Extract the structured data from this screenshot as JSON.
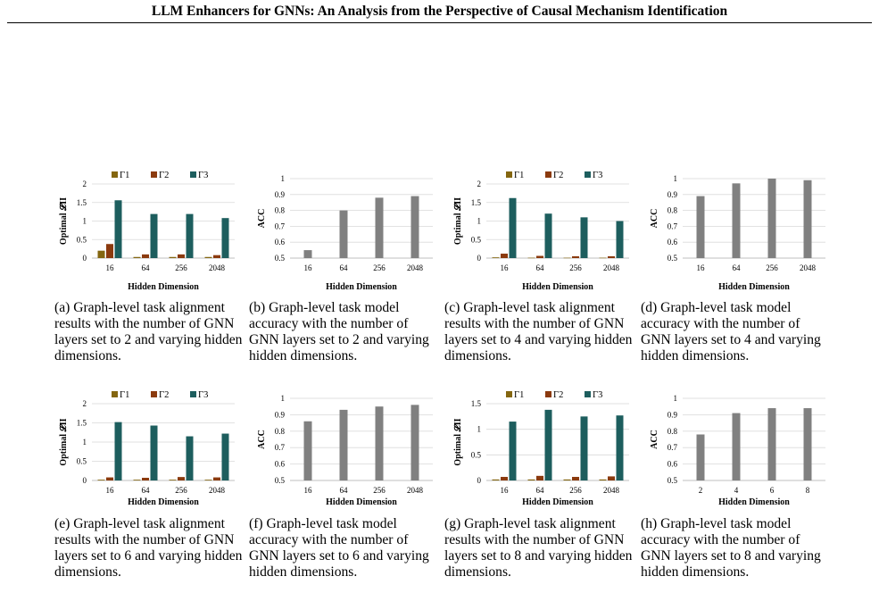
{
  "header": {
    "title": "LLM Enhancers for GNNs: An Analysis from the Perspective of Causal Mechanism Identification"
  },
  "colors": {
    "gamma1": "#846610",
    "gamma2": "#8B3A0E",
    "gamma3": "#1D5E5E",
    "acc": "#808080"
  },
  "captions": {
    "a": "(a) Graph-level task alignment results with the number of GNN layers set to 2 and varying hidden dimensions.",
    "b": "(b) Graph-level task model accuracy with the number of GNN layers set to 2 and varying hidden dimensions.",
    "c": "(c) Graph-level task alignment results with the number of GNN layers set to 4 and varying hidden dimensions.",
    "d": "(d) Graph-level task model accuracy with the number of GNN layers set to 4 and varying hidden dimensions.",
    "e": "(e) Graph-level task alignment results with the number of GNN layers set to 6 and varying hidden dimensions.",
    "f": "(f) Graph-level task model accuracy with the number of GNN layers set to 6 and varying hidden dimensions.",
    "g": "(g) Graph-level task alignment results with the number of GNN layers set to 8 and varying hidden dimensions.",
    "h": "(h) Graph-level task model accuracy with the number of GNN layers set to 8 and varying hidden dimensions."
  },
  "chart_data": [
    {
      "id": "a",
      "type": "bar",
      "categories": [
        "16",
        "64",
        "256",
        "2048"
      ],
      "ylabel": "Optimal 𝓛II",
      "xlabel": "Hidden Dimension",
      "ylim": [
        0,
        2
      ],
      "yticks": [
        0,
        0.5,
        1,
        1.5,
        2
      ],
      "ytick_labels": [
        "0",
        "0.5",
        "1",
        "1.5",
        "2"
      ],
      "legend": "top",
      "series": [
        {
          "name": "Γ1",
          "values": [
            0.2,
            0.03,
            0.03,
            0.03
          ]
        },
        {
          "name": "Γ2",
          "values": [
            0.38,
            0.1,
            0.1,
            0.08
          ]
        },
        {
          "name": "Γ3",
          "values": [
            1.56,
            1.19,
            1.19,
            1.08
          ]
        }
      ]
    },
    {
      "id": "b",
      "type": "bar",
      "categories": [
        "16",
        "64",
        "256",
        "2048"
      ],
      "ylabel": "ACC",
      "xlabel": "Hidden Dimension",
      "ylim": [
        0.5,
        1
      ],
      "yticks": [
        0.5,
        0.6,
        0.7,
        0.8,
        0.9,
        1
      ],
      "ytick_labels": [
        "0.5",
        "0.6",
        "0.7",
        "0.8",
        "0.9",
        "1"
      ],
      "series": [
        {
          "values": [
            0.55,
            0.8,
            0.88,
            0.89
          ]
        }
      ]
    },
    {
      "id": "c",
      "type": "bar",
      "categories": [
        "16",
        "64",
        "256",
        "2048"
      ],
      "ylabel": "Optimal 𝓛II",
      "xlabel": "Hidden Dimension",
      "ylim": [
        0,
        2
      ],
      "yticks": [
        0,
        0.5,
        1,
        1.5,
        2
      ],
      "ytick_labels": [
        "0",
        "0.5",
        "1",
        "1.5",
        "2"
      ],
      "legend": "top",
      "series": [
        {
          "name": "Γ1",
          "values": [
            0.02,
            0.01,
            0.01,
            0.01
          ]
        },
        {
          "name": "Γ2",
          "values": [
            0.12,
            0.06,
            0.05,
            0.05
          ]
        },
        {
          "name": "Γ3",
          "values": [
            1.62,
            1.2,
            1.1,
            1.0
          ]
        }
      ]
    },
    {
      "id": "d",
      "type": "bar",
      "categories": [
        "16",
        "64",
        "256",
        "2048"
      ],
      "ylabel": "ACC",
      "xlabel": "Hidden Dimension",
      "ylim": [
        0.5,
        1
      ],
      "yticks": [
        0.5,
        0.6,
        0.7,
        0.8,
        0.9,
        1
      ],
      "ytick_labels": [
        "0.5",
        "0.6",
        "0.7",
        "0.8",
        "0.9",
        "1"
      ],
      "series": [
        {
          "values": [
            0.89,
            0.97,
            1.0,
            0.99
          ]
        }
      ]
    },
    {
      "id": "e",
      "type": "bar",
      "categories": [
        "16",
        "64",
        "256",
        "2048"
      ],
      "ylabel": "Optimal 𝓛II",
      "xlabel": "Hidden Dimension",
      "ylim": [
        0,
        2
      ],
      "yticks": [
        0,
        0.5,
        1,
        1.5,
        2
      ],
      "ytick_labels": [
        "0",
        "0.5",
        "1",
        "1.5",
        "2"
      ],
      "legend": "top",
      "series": [
        {
          "name": "Γ1",
          "values": [
            0.02,
            0.02,
            0.02,
            0.02
          ]
        },
        {
          "name": "Γ2",
          "values": [
            0.08,
            0.07,
            0.09,
            0.08
          ]
        },
        {
          "name": "Γ3",
          "values": [
            1.52,
            1.43,
            1.15,
            1.22
          ]
        }
      ]
    },
    {
      "id": "f",
      "type": "bar",
      "categories": [
        "16",
        "64",
        "256",
        "2048"
      ],
      "ylabel": "ACC",
      "xlabel": "Hidden Dimension",
      "ylim": [
        0.5,
        1
      ],
      "yticks": [
        0.5,
        0.6,
        0.7,
        0.8,
        0.9,
        1
      ],
      "ytick_labels": [
        "0.5",
        "0.6",
        "0.7",
        "0.8",
        "0.9",
        "1"
      ],
      "series": [
        {
          "values": [
            0.86,
            0.93,
            0.95,
            0.96
          ]
        }
      ]
    },
    {
      "id": "g",
      "type": "bar",
      "categories": [
        "16",
        "64",
        "256",
        "2048"
      ],
      "ylabel": "Optimal 𝓛II",
      "xlabel": "Hidden Dimension",
      "ylim": [
        0,
        1.5
      ],
      "yticks": [
        0,
        0.5,
        1,
        1.5
      ],
      "ytick_labels": [
        "0",
        "0.5",
        "1",
        "1.5"
      ],
      "legend": "top",
      "series": [
        {
          "name": "Γ1",
          "values": [
            0.02,
            0.02,
            0.02,
            0.02
          ]
        },
        {
          "name": "Γ2",
          "values": [
            0.07,
            0.09,
            0.07,
            0.08
          ]
        },
        {
          "name": "Γ3",
          "values": [
            1.15,
            1.38,
            1.25,
            1.27
          ]
        }
      ]
    },
    {
      "id": "h",
      "type": "bar",
      "categories": [
        "2",
        "4",
        "6",
        "8"
      ],
      "ylabel": "ACC",
      "xlabel": "Hidden Dimension",
      "ylim": [
        0.5,
        1
      ],
      "yticks": [
        0.5,
        0.6,
        0.7,
        0.8,
        0.9,
        1
      ],
      "ytick_labels": [
        "0.5",
        "0.6",
        "0.7",
        "0.8",
        "0.9",
        "1"
      ],
      "series": [
        {
          "values": [
            0.78,
            0.91,
            0.94,
            0.94
          ]
        }
      ]
    }
  ]
}
